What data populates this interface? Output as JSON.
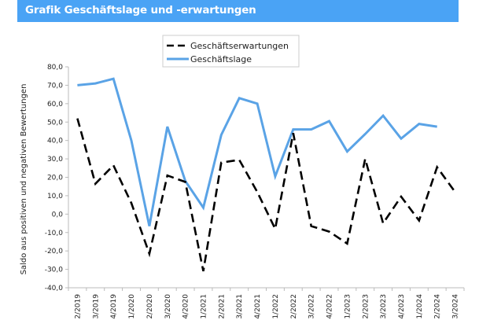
{
  "header": {
    "title": "Grafik Geschäftslage und -erwartungen"
  },
  "colors": {
    "title_bg": "#4aa3f5",
    "lage": "#5aa3e6",
    "erwartungen": "#000000"
  },
  "chart_data": {
    "type": "line",
    "title": "Grafik Geschäftslage und -erwartungen",
    "xlabel": "",
    "ylabel": "Saldo aus positiven und negativen Bewertungen",
    "ylim": [
      -40,
      80
    ],
    "yticks": [
      80,
      70,
      60,
      50,
      40,
      30,
      20,
      10,
      0,
      -10,
      -20,
      -30,
      -40
    ],
    "ytick_labels": [
      "80,0",
      "70,0",
      "60,0",
      "50,0",
      "40,0",
      "30,0",
      "20,0",
      "10,0",
      "0,0",
      "-10,0",
      "-20,0",
      "-30,0",
      "-40,0"
    ],
    "legend_position": "top-center",
    "categories": [
      "2/2019",
      "3/2019",
      "4/2019",
      "1/2020",
      "2/2020",
      "3/2020",
      "4/2020",
      "1/2021",
      "2/2021",
      "3/2021",
      "4/2021",
      "1/2022",
      "2/2022",
      "3/2022",
      "4/2022",
      "1/2023",
      "2/2023",
      "3/2023",
      "4/2023",
      "1/2024",
      "2/2024",
      "3/2024"
    ],
    "series": [
      {
        "name": "Geschäftserwartungen",
        "style": "dashed",
        "values": [
          52,
          16.5,
          26.5,
          6,
          -21.5,
          21,
          17.5,
          -31,
          28,
          29.5,
          12,
          -8,
          44,
          -6.5,
          -9.5,
          -16,
          30,
          -5,
          9.5,
          -3.5,
          25.5,
          12
        ]
      },
      {
        "name": "Geschäftslage",
        "style": "solid",
        "values": [
          70,
          71,
          73.5,
          40,
          -6.5,
          47.5,
          18,
          3.5,
          43,
          63,
          60,
          20.5,
          46,
          46,
          50.5,
          34,
          43.5,
          53.5,
          41,
          49,
          47.5,
          null
        ]
      }
    ]
  }
}
